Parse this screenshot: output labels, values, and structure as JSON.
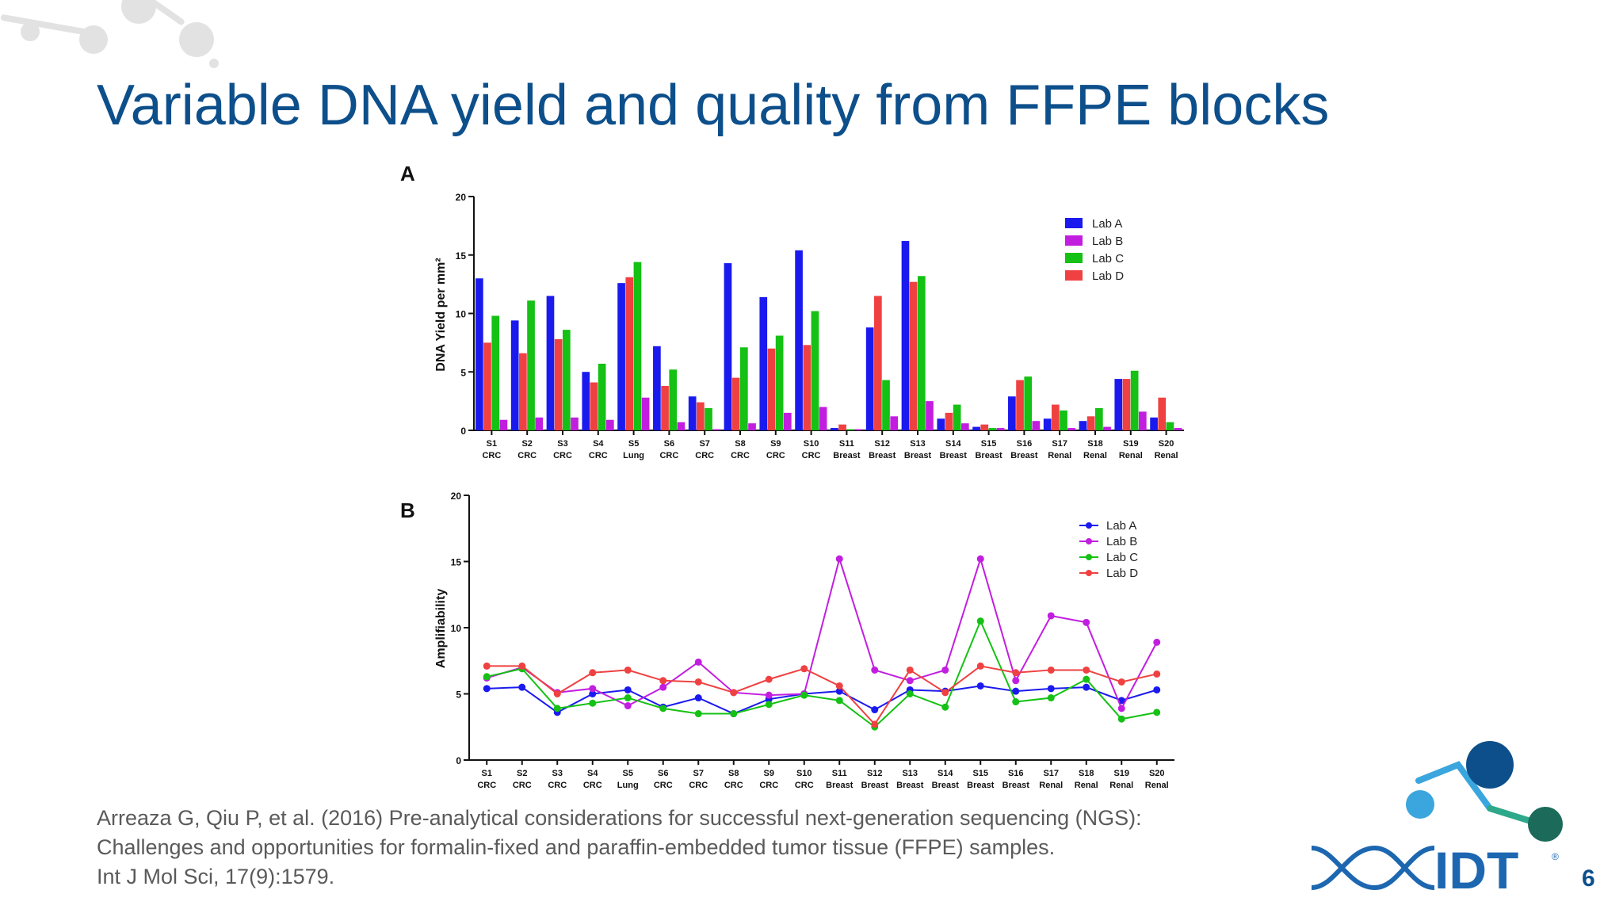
{
  "slide": {
    "title": "Variable DNA yield and quality from FFPE blocks",
    "page_number": "6",
    "citation_lines": [
      "Arreaza G, Qiu P, et al. (2016) Pre-analytical considerations for successful next-generation sequencing (NGS):",
      "Challenges and opportunities for formalin-fixed and paraffin-embedded tumor tissue (FFPE) samples.",
      "Int J Mol Sci, 17(9):1579."
    ],
    "logo_text": "IDT",
    "logo_mark": "®"
  },
  "colors": {
    "lab_a": "#1a1aef",
    "lab_b": "#c21ee0",
    "lab_c": "#14c114",
    "lab_d": "#ef4141",
    "title": "#0d4f8b"
  },
  "chart_data": [
    {
      "type": "bar",
      "panel_label": "A",
      "ylabel": "DNA Yield per mm²",
      "ylim": [
        0,
        20
      ],
      "yticks": [
        "0",
        "5",
        "10",
        "15",
        "20"
      ],
      "categories": [
        "S1",
        "S2",
        "S3",
        "S4",
        "S5",
        "S6",
        "S7",
        "S8",
        "S9",
        "S10",
        "S11",
        "S12",
        "S13",
        "S14",
        "S15",
        "S16",
        "S17",
        "S18",
        "S19",
        "S20"
      ],
      "category_types": [
        "CRC",
        "CRC",
        "CRC",
        "CRC",
        "Lung",
        "CRC",
        "CRC",
        "CRC",
        "CRC",
        "CRC",
        "Breast",
        "Breast",
        "Breast",
        "Breast",
        "Breast",
        "Breast",
        "Renal",
        "Renal",
        "Renal",
        "Renal"
      ],
      "legend_position": "top-right",
      "series": [
        {
          "name": "Lab A",
          "values": [
            13.0,
            9.4,
            11.5,
            5.0,
            12.6,
            7.2,
            2.9,
            14.3,
            11.4,
            15.4,
            0.2,
            8.8,
            16.2,
            1.0,
            0.3,
            2.9,
            1.0,
            0.8,
            4.4,
            1.1
          ]
        },
        {
          "name": "Lab B",
          "values": [
            0.9,
            1.1,
            1.1,
            0.9,
            2.8,
            0.7,
            0.1,
            0.6,
            1.5,
            2.0,
            0.1,
            1.2,
            2.5,
            0.6,
            0.2,
            0.8,
            0.2,
            0.3,
            1.6,
            0.2
          ]
        },
        {
          "name": "Lab C",
          "values": [
            9.8,
            11.1,
            8.6,
            5.7,
            14.4,
            5.2,
            1.9,
            7.1,
            8.1,
            10.2,
            0.1,
            4.3,
            13.2,
            2.2,
            0.2,
            4.6,
            1.7,
            1.9,
            5.1,
            0.7
          ]
        },
        {
          "name": "Lab D",
          "values": [
            7.5,
            6.6,
            7.8,
            4.1,
            13.1,
            3.8,
            2.4,
            4.5,
            7.0,
            7.3,
            0.5,
            11.5,
            12.7,
            1.5,
            0.5,
            4.3,
            2.2,
            1.2,
            4.4,
            2.8
          ]
        }
      ]
    },
    {
      "type": "line",
      "panel_label": "B",
      "ylabel": "Amplifiability",
      "ylim": [
        0,
        20
      ],
      "yticks": [
        "0",
        "5",
        "10",
        "15",
        "20"
      ],
      "categories": [
        "S1",
        "S2",
        "S3",
        "S4",
        "S5",
        "S6",
        "S7",
        "S8",
        "S9",
        "S10",
        "S11",
        "S12",
        "S13",
        "S14",
        "S15",
        "S16",
        "S17",
        "S18",
        "S19",
        "S20"
      ],
      "category_types": [
        "CRC",
        "CRC",
        "CRC",
        "CRC",
        "Lung",
        "CRC",
        "CRC",
        "CRC",
        "CRC",
        "CRC",
        "Breast",
        "Breast",
        "Breast",
        "Breast",
        "Breast",
        "Breast",
        "Renal",
        "Renal",
        "Renal",
        "Renal"
      ],
      "legend_position": "top-right",
      "series": [
        {
          "name": "Lab A",
          "values": [
            5.4,
            5.5,
            3.6,
            5.0,
            5.3,
            4.0,
            4.7,
            3.5,
            4.6,
            5.0,
            5.2,
            3.8,
            5.3,
            5.2,
            5.6,
            5.2,
            5.4,
            5.5,
            4.5,
            5.3
          ]
        },
        {
          "name": "Lab B",
          "values": [
            6.2,
            7.0,
            5.1,
            5.4,
            4.1,
            5.5,
            7.4,
            5.1,
            4.9,
            5.0,
            15.2,
            6.8,
            6.0,
            6.8,
            15.2,
            6.0,
            10.9,
            10.4,
            3.9,
            8.9
          ]
        },
        {
          "name": "Lab C",
          "values": [
            6.3,
            6.9,
            3.9,
            4.3,
            4.7,
            3.9,
            3.5,
            3.5,
            4.2,
            4.9,
            4.5,
            2.5,
            5.0,
            4.0,
            10.5,
            4.4,
            4.7,
            6.1,
            3.1,
            3.6
          ]
        },
        {
          "name": "Lab D",
          "values": [
            7.1,
            7.1,
            5.0,
            6.6,
            6.8,
            6.0,
            5.9,
            5.1,
            6.1,
            6.9,
            5.6,
            2.7,
            6.8,
            5.1,
            7.1,
            6.6,
            6.8,
            6.8,
            5.9,
            6.5
          ]
        }
      ]
    }
  ]
}
